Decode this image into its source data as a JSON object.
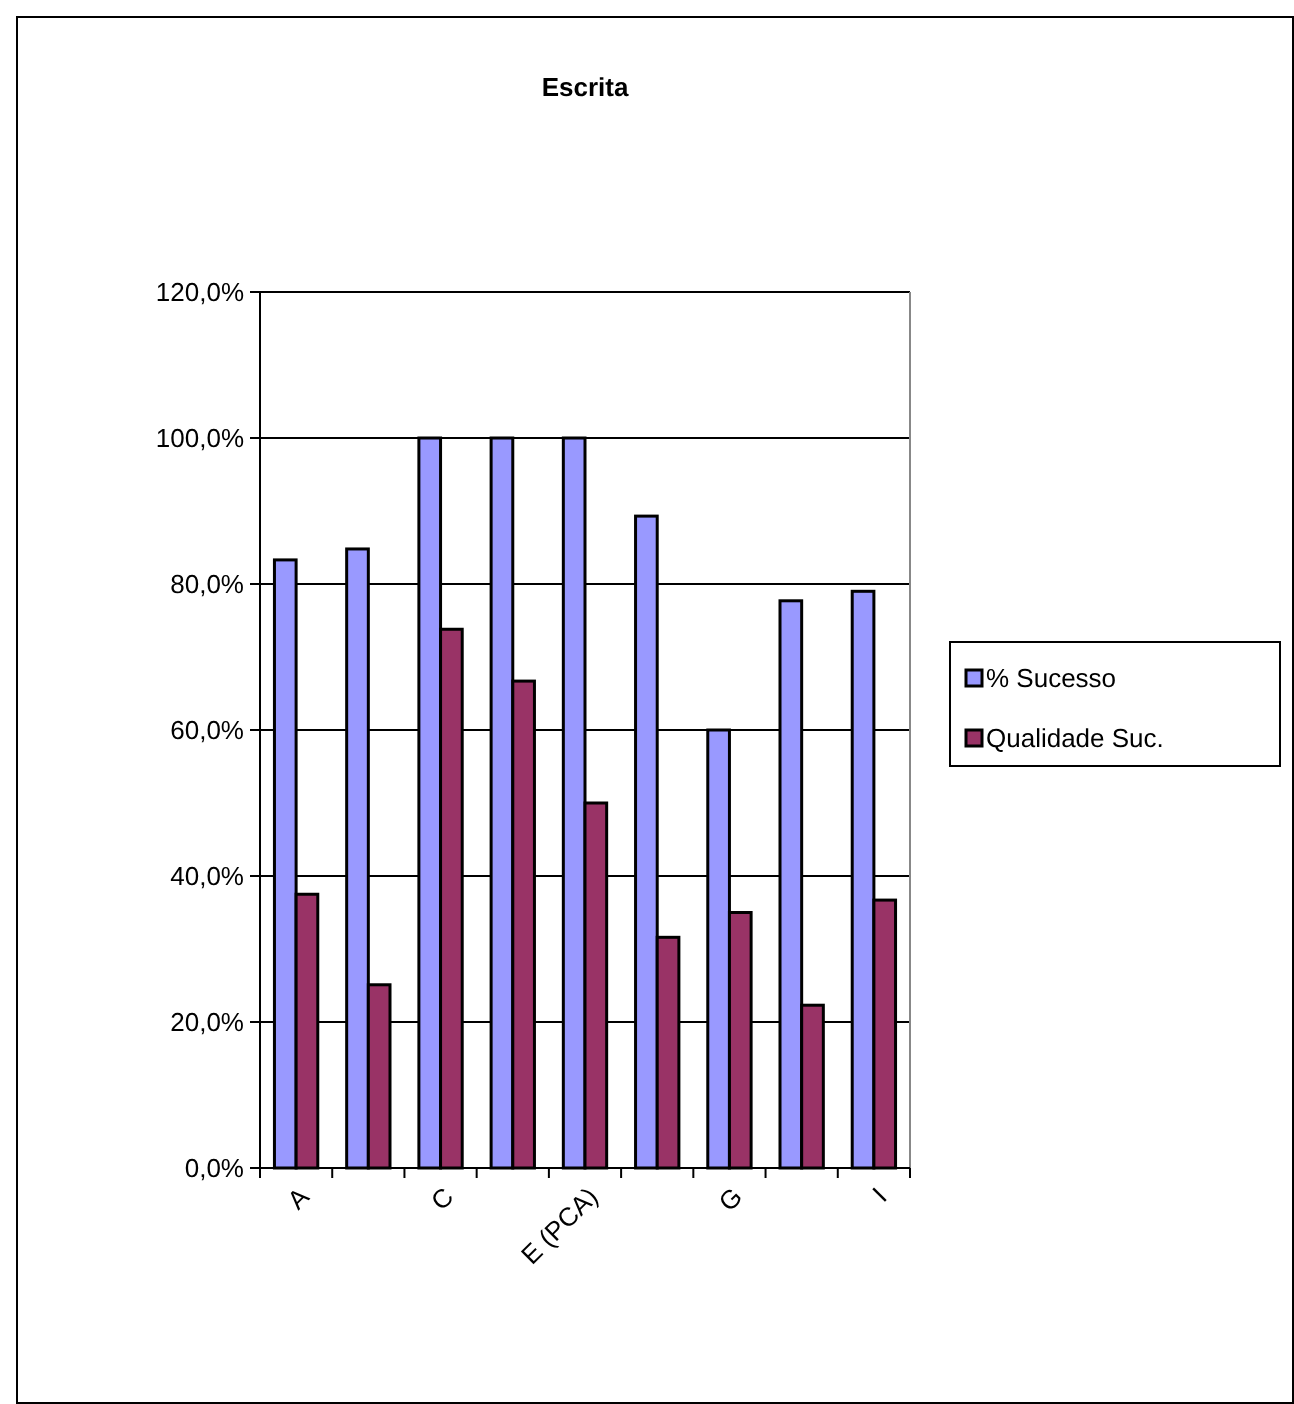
{
  "chart_data": {
    "type": "bar",
    "title": "Escrita",
    "categories": [
      "A",
      null,
      "C",
      null,
      "E (PCA)",
      null,
      "G",
      null,
      "I"
    ],
    "series": [
      {
        "name": "% Sucesso",
        "color": "#9999ff",
        "values": [
          83.3,
          84.8,
          100,
          100,
          100,
          89.3,
          60,
          77.7,
          79.0
        ]
      },
      {
        "name": "Qualidade Suc.",
        "color": "#993366",
        "values": [
          37.5,
          25.1,
          73.8,
          66.7,
          50.0,
          31.6,
          35.0,
          22.3,
          36.7
        ]
      }
    ],
    "ylim": [
      0,
      120
    ],
    "yticks": [
      {
        "value": 0,
        "label": "0,0%"
      },
      {
        "value": 20,
        "label": "20,0%"
      },
      {
        "value": 40,
        "label": "40,0%"
      },
      {
        "value": 60,
        "label": "60,0%"
      },
      {
        "value": 80,
        "label": "80,0%"
      },
      {
        "value": 100,
        "label": "100,0%"
      },
      {
        "value": 120,
        "label": "120,0%"
      }
    ],
    "grid": "y",
    "legend": "right"
  }
}
